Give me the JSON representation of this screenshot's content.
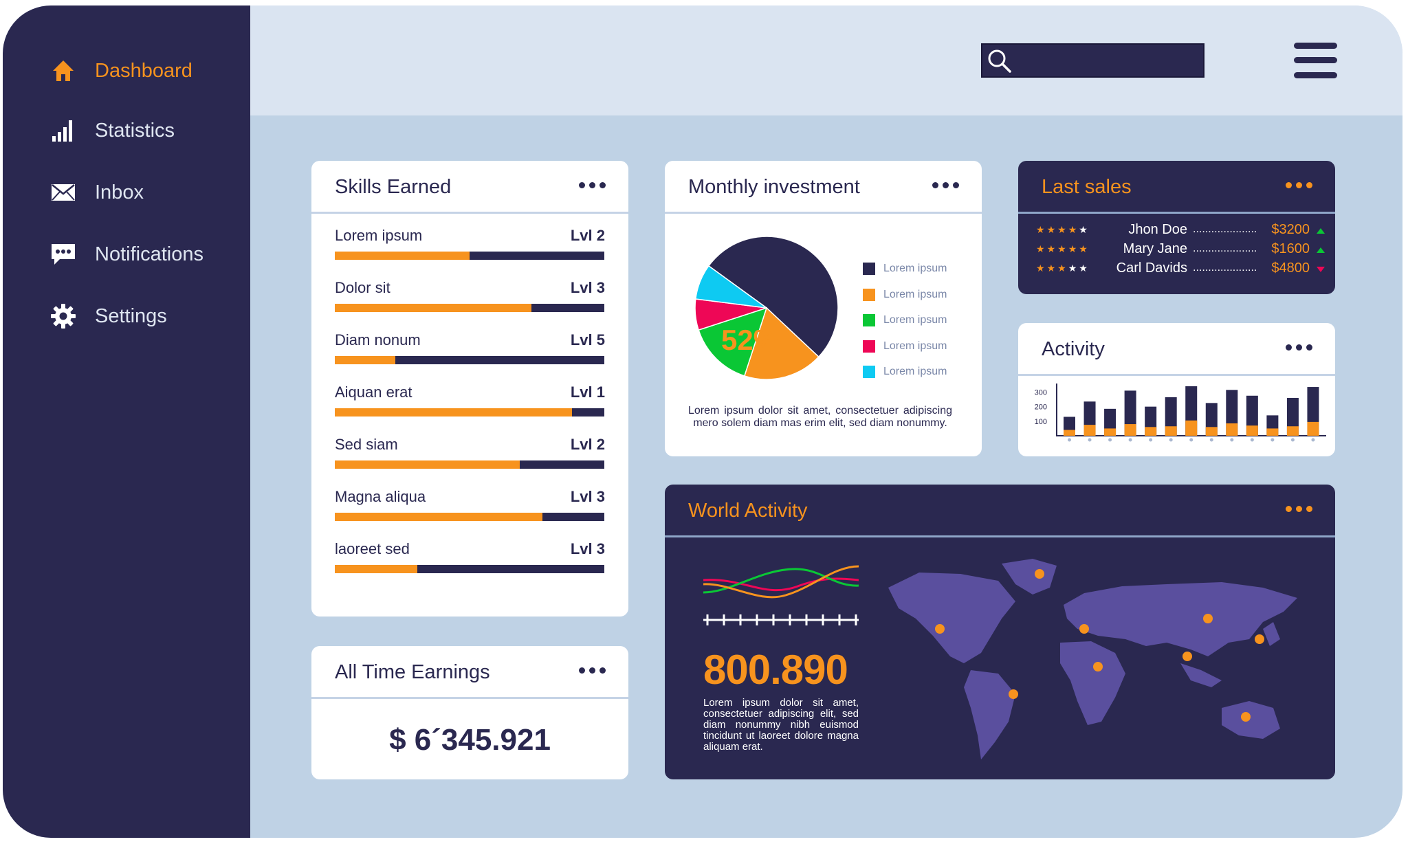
{
  "nav": [
    {
      "label": "Dashboard",
      "icon": "home-icon",
      "active": true
    },
    {
      "label": "Statistics",
      "icon": "bar-chart-icon",
      "active": false
    },
    {
      "label": "Inbox",
      "icon": "envelope-icon",
      "active": false
    },
    {
      "label": "Notifications",
      "icon": "chat-bubble-icon",
      "active": false
    },
    {
      "label": "Settings",
      "icon": "gear-icon",
      "active": false
    }
  ],
  "colors": {
    "navy": "#2a2850",
    "orange": "#f7931e",
    "green": "#0ac735",
    "red": "#ee0756",
    "cyan": "#0ecaf2"
  },
  "skills": {
    "title": "Skills Earned",
    "items": [
      {
        "label": "Lorem ipsum",
        "level": "Lvl 2",
        "progress": 0.5
      },
      {
        "label": "Dolor sit",
        "level": "Lvl 3",
        "progress": 0.73
      },
      {
        "label": "Diam nonum",
        "level": "Lvl 5",
        "progress": 0.225
      },
      {
        "label": "Aiquan erat",
        "level": "Lvl 1",
        "progress": 0.88
      },
      {
        "label": "Sed siam",
        "level": "Lvl 2",
        "progress": 0.685
      },
      {
        "label": "Magna aliqua",
        "level": "Lvl 3",
        "progress": 0.77
      },
      {
        "label": "laoreet sed",
        "level": "Lvl 3",
        "progress": 0.305
      }
    ]
  },
  "earnings": {
    "title": "All Time Earnings",
    "value": "$ 6´345.921"
  },
  "investment": {
    "title": "Monthly investment",
    "center_label": "52%",
    "description": "Lorem ipsum dolor sit amet, consectetuer adipiscing mero solem diam mas erim elit, sed diam nonummy.",
    "legend": [
      {
        "label": "Lorem ipsum",
        "color": "#2a2850"
      },
      {
        "label": "Lorem ipsum",
        "color": "#f7931e"
      },
      {
        "label": "Lorem ipsum",
        "color": "#0ac735"
      },
      {
        "label": "Lorem ipsum",
        "color": "#ee0756"
      },
      {
        "label": "Lorem ipsum",
        "color": "#0ecaf2"
      }
    ]
  },
  "sales": {
    "title": "Last sales",
    "rows": [
      {
        "stars": "★★★★★",
        "rating": 4,
        "name": "Jhon Doe",
        "filler": ".....................",
        "amount": "$3200",
        "trend": "up"
      },
      {
        "stars": "★★★★★",
        "rating": 5,
        "name": "Mary Jane",
        "filler": ".....................",
        "amount": "$1600",
        "trend": "up"
      },
      {
        "stars": "★★★★★",
        "rating": 3,
        "name": "Carl Davids",
        "filler": ".....................",
        "amount": "$4800",
        "trend": "down"
      }
    ]
  },
  "activity": {
    "title": "Activity"
  },
  "world": {
    "title": "World Activity",
    "big_number": "800.890",
    "description": "Lorem ipsum dolor sit amet, consectetuer adipiscing elit, sed diam nonummy nibh euismod tincidunt ut laoreet dolore magna aliquam erat."
  },
  "chart_data": [
    {
      "type": "pie",
      "title": "Monthly investment",
      "labels": [
        "Lorem ipsum",
        "Lorem ipsum",
        "Lorem ipsum",
        "Lorem ipsum",
        "Lorem ipsum"
      ],
      "values": [
        52,
        18,
        15,
        7,
        8
      ],
      "colors": [
        "#2a2850",
        "#f7931e",
        "#0ac735",
        "#ee0756",
        "#0ecaf2"
      ]
    },
    {
      "type": "bar",
      "title": "Activity",
      "yticks": [
        100,
        200,
        300
      ],
      "ylim": [
        0,
        340
      ],
      "series": [
        {
          "values": [
            130,
            235,
            185,
            310,
            200,
            265,
            340,
            225,
            315,
            275,
            140,
            260,
            335
          ]
        },
        {
          "values": [
            40,
            75,
            50,
            80,
            60,
            65,
            105,
            60,
            85,
            70,
            50,
            65,
            95
          ]
        }
      ]
    }
  ]
}
